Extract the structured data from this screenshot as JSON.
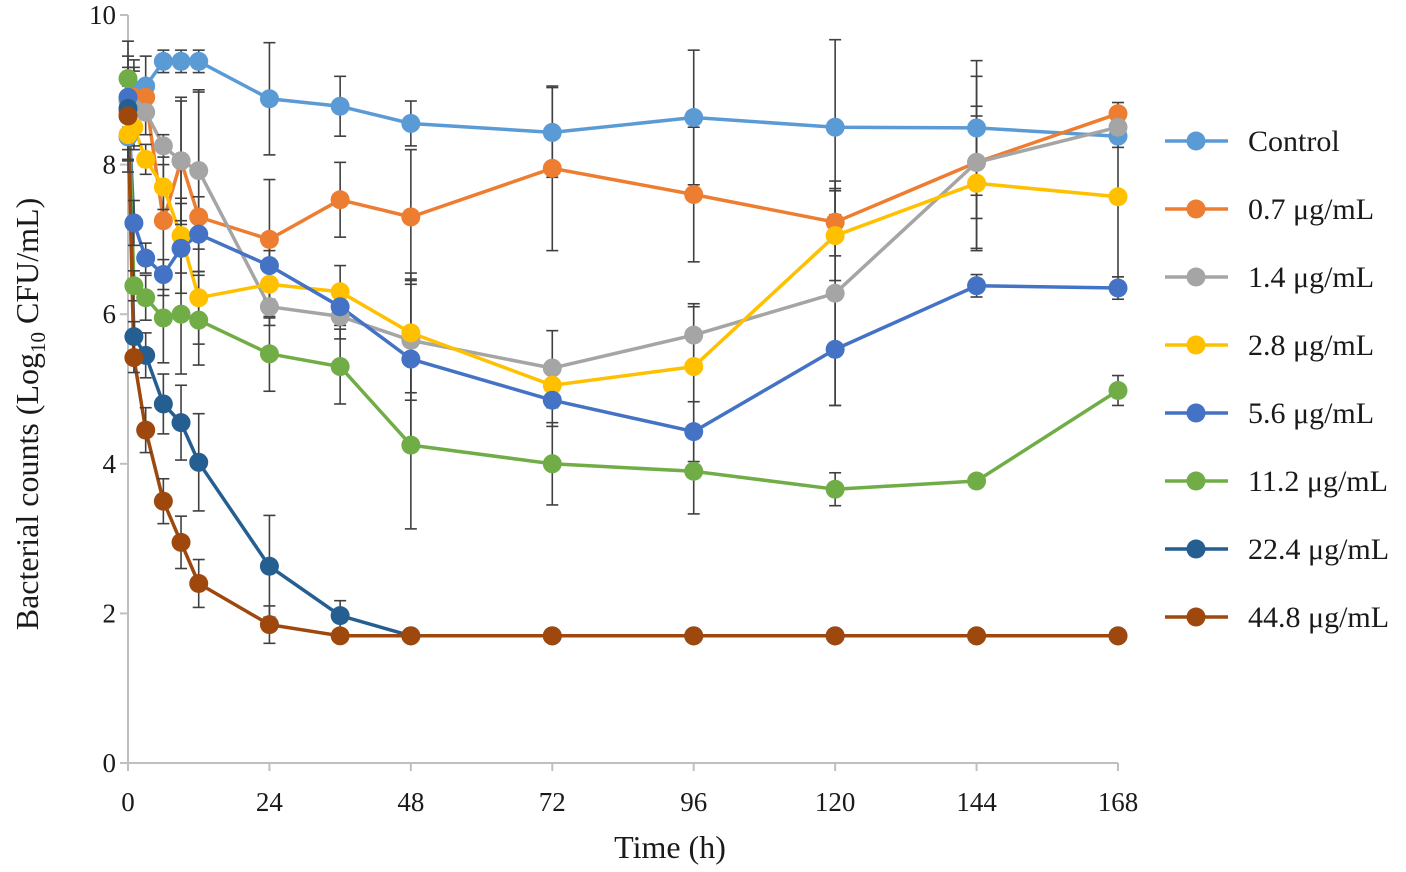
{
  "chart_data": {
    "type": "line",
    "title": "",
    "xlabel": "Time (h)",
    "ylabel": "Bacterial counts (Log10 CFU/mL)",
    "ylabel_parts": {
      "pre": "Bacterial counts (Log",
      "sub": "10",
      "post": " CFU/mL)"
    },
    "x_range": [
      0,
      168
    ],
    "y_range": [
      0,
      10
    ],
    "x_ticks": [
      "0",
      "24",
      "48",
      "72",
      "96",
      "120",
      "144",
      "168"
    ],
    "y_ticks": [
      "0",
      "2",
      "4",
      "6",
      "8",
      "10"
    ],
    "grid": false,
    "legend_position": "right",
    "x": [
      0,
      1,
      3,
      6,
      9,
      12,
      24,
      36,
      48,
      72,
      96,
      120,
      144,
      168
    ],
    "series": [
      {
        "name": "Control",
        "color": "#5b9bd5",
        "y": [
          8.37,
          9.0,
          9.05,
          9.38,
          9.38,
          9.38,
          8.88,
          8.78,
          8.55,
          8.43,
          8.63,
          8.5,
          8.49,
          8.38
        ],
        "err": [
          0.3,
          0.3,
          0.4,
          0.15,
          0.15,
          0.15,
          0.75,
          0.4,
          0.3,
          0.6,
          0.9,
          1.17,
          0.9,
          0.15
        ]
      },
      {
        "name": "0.7 μg/mL",
        "color": "#ed7d31",
        "y": [
          8.7,
          8.9,
          8.9,
          7.25,
          8.05,
          7.3,
          7.0,
          7.53,
          7.3,
          7.95,
          7.6,
          7.23,
          8.03,
          8.68
        ],
        "err": [
          0.5,
          0.5,
          0.2,
          1.0,
          0.85,
          1.7,
          0.8,
          0.5,
          0.9,
          1.1,
          0.9,
          0.45,
          0.75,
          0.15
        ]
      },
      {
        "name": "1.4 μg/mL",
        "color": "#a5a5a5",
        "y": [
          8.85,
          8.75,
          8.7,
          8.25,
          8.05,
          7.92,
          6.1,
          5.97,
          5.65,
          5.28,
          5.72,
          6.28,
          8.03,
          8.5
        ],
        "err": [
          0.8,
          0.5,
          0.3,
          0.15,
          0.8,
          1.05,
          0.25,
          0.3,
          0.8,
          0.5,
          0.42,
          1.5,
          1.15,
          0.15
        ]
      },
      {
        "name": "2.8 μg/mL",
        "color": "#ffc000",
        "y": [
          8.4,
          8.5,
          8.07,
          7.7,
          7.05,
          6.22,
          6.4,
          6.3,
          5.75,
          5.05,
          5.3,
          7.05,
          7.75,
          7.57
        ],
        "err": [
          0.5,
          0.3,
          0.2,
          0.3,
          0.5,
          0.35,
          0.45,
          0.35,
          0.8,
          0.3,
          0.8,
          0.6,
          0.9,
          1.07
        ]
      },
      {
        "name": "5.6 μg/mL",
        "color": "#4472c4",
        "y": [
          8.9,
          7.22,
          6.75,
          6.53,
          6.88,
          7.07,
          6.65,
          6.1,
          5.4,
          4.85,
          4.43,
          5.53,
          6.38,
          6.35
        ],
        "err": [
          0.4,
          0.3,
          0.2,
          0.2,
          0.6,
          0.5,
          0.3,
          0.25,
          1.07,
          0.35,
          0.4,
          0.75,
          0.15,
          0.15
        ]
      },
      {
        "name": "11.2 μg/mL",
        "color": "#70ad47",
        "y": [
          9.15,
          6.38,
          6.22,
          5.95,
          6.0,
          5.92,
          5.47,
          5.3,
          4.25,
          4.0,
          3.9,
          3.66,
          3.77,
          4.98
        ],
        "err": [
          0.3,
          0.2,
          0.3,
          0.6,
          0.8,
          0.6,
          0.5,
          0.5,
          1.12,
          0.55,
          0.57,
          0.22,
          0.05,
          0.2
        ]
      },
      {
        "name": "22.4 μg/mL",
        "color": "#255e91",
        "y": [
          8.75,
          5.7,
          5.45,
          4.8,
          4.55,
          4.02,
          2.63,
          1.97,
          1.7,
          1.7,
          1.7,
          1.7,
          1.7,
          1.7
        ],
        "err": [
          0.3,
          0.2,
          0.3,
          0.4,
          0.5,
          0.65,
          0.68,
          0.2,
          0,
          0,
          0,
          0,
          0,
          0
        ]
      },
      {
        "name": "44.8 μg/mL",
        "color": "#9e480e",
        "y": [
          8.65,
          5.42,
          4.45,
          3.5,
          2.95,
          2.4,
          1.85,
          1.7,
          1.7,
          1.7,
          1.7,
          1.7,
          1.7,
          1.7
        ],
        "err": [
          0.3,
          0.2,
          0.3,
          0.3,
          0.35,
          0.32,
          0.25,
          0,
          0,
          0,
          0,
          0,
          0,
          0
        ]
      }
    ]
  }
}
